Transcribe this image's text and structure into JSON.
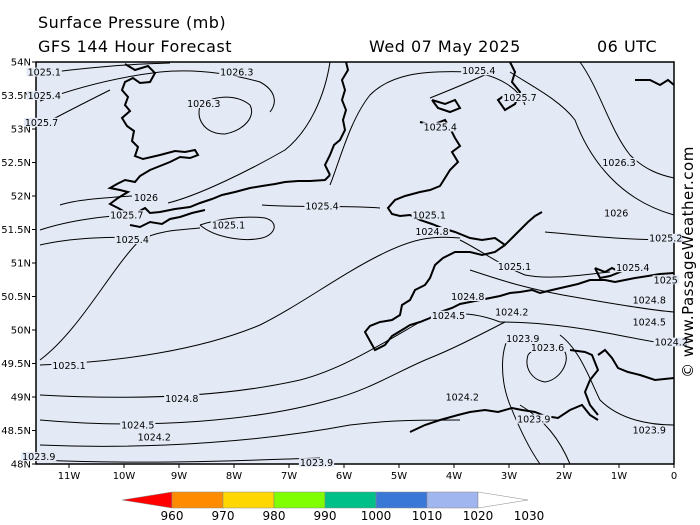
{
  "header": {
    "title_line1": "Surface Pressure (mb)",
    "title_line2": "GFS 144 Hour Forecast",
    "valid_date": "Wed 07 May 2025",
    "valid_time": "06 UTC"
  },
  "watermark": "© www.PassageWeather.com",
  "map": {
    "background_color": "#e3e9f5",
    "latitude_ticks": [
      "54N",
      "53.5N",
      "53N",
      "52.5N",
      "52N",
      "51.5N",
      "51N",
      "50.5N",
      "50N",
      "49.5N",
      "49N",
      "48.5N",
      "48N"
    ],
    "longitude_ticks": [
      "11W",
      "10W",
      "9W",
      "8W",
      "7W",
      "6W",
      "5W",
      "4W",
      "3W",
      "2W",
      "1W",
      "0"
    ],
    "isobar_labels": [
      {
        "text": "1025.1",
        "lon": -11.45,
        "lat": 53.85
      },
      {
        "text": "1025.4",
        "lon": -11.45,
        "lat": 53.5
      },
      {
        "text": "1025.7",
        "lon": -11.5,
        "lat": 53.1
      },
      {
        "text": "1026.3",
        "lon": -7.95,
        "lat": 53.85
      },
      {
        "text": "1026.3",
        "lon": -8.55,
        "lat": 53.38
      },
      {
        "text": "1025.4",
        "lon": -3.55,
        "lat": 53.87
      },
      {
        "text": "1025.7",
        "lon": -2.8,
        "lat": 53.47
      },
      {
        "text": "1025.4",
        "lon": -4.25,
        "lat": 53.03
      },
      {
        "text": "1026.3",
        "lon": -1.0,
        "lat": 52.5
      },
      {
        "text": "1026",
        "lon": -9.6,
        "lat": 51.98
      },
      {
        "text": "1025.7",
        "lon": -9.95,
        "lat": 51.72
      },
      {
        "text": "1025.4",
        "lon": -9.85,
        "lat": 51.35
      },
      {
        "text": "1025.4",
        "lon": -6.4,
        "lat": 51.85
      },
      {
        "text": "1025.1",
        "lon": -8.1,
        "lat": 51.57
      },
      {
        "text": "1025.1",
        "lon": -4.45,
        "lat": 51.72
      },
      {
        "text": "1024.8",
        "lon": -4.4,
        "lat": 51.47
      },
      {
        "text": "1026",
        "lon": -1.05,
        "lat": 51.75
      },
      {
        "text": "1025.2",
        "lon": -0.15,
        "lat": 51.37
      },
      {
        "text": "1025.1",
        "lon": -2.9,
        "lat": 50.95
      },
      {
        "text": "1025.4",
        "lon": -0.75,
        "lat": 50.93
      },
      {
        "text": "1025",
        "lon": -0.15,
        "lat": 50.75
      },
      {
        "text": "1024.8",
        "lon": -0.45,
        "lat": 50.45
      },
      {
        "text": "1024.8",
        "lon": -3.75,
        "lat": 50.5
      },
      {
        "text": "1024.2",
        "lon": -2.95,
        "lat": 50.27
      },
      {
        "text": "1024.5",
        "lon": -4.1,
        "lat": 50.22
      },
      {
        "text": "1024.5",
        "lon": -0.45,
        "lat": 50.12
      },
      {
        "text": "1023.9",
        "lon": -2.75,
        "lat": 49.87
      },
      {
        "text": "1023.6",
        "lon": -2.3,
        "lat": 49.74
      },
      {
        "text": "1024.2",
        "lon": -0.05,
        "lat": 49.82
      },
      {
        "text": "1025.1",
        "lon": -11.0,
        "lat": 49.47
      },
      {
        "text": "1024.8",
        "lon": -8.95,
        "lat": 48.98
      },
      {
        "text": "1024.2",
        "lon": -3.85,
        "lat": 49.0
      },
      {
        "text": "1024.5",
        "lon": -9.75,
        "lat": 48.58
      },
      {
        "text": "1023.9",
        "lon": -2.55,
        "lat": 48.67
      },
      {
        "text": "1024.2",
        "lon": -9.45,
        "lat": 48.4
      },
      {
        "text": "1023.9",
        "lon": -0.45,
        "lat": 48.51
      },
      {
        "text": "1023.9",
        "lon": -11.55,
        "lat": 48.11
      },
      {
        "text": "1023.9",
        "lon": -6.5,
        "lat": 48.02
      }
    ]
  },
  "colorbar": {
    "labels": [
      "960",
      "970",
      "980",
      "990",
      "1000",
      "1010",
      "1020",
      "1030"
    ],
    "colors": [
      "#ff0000",
      "#ff8c00",
      "#ffd700",
      "#7fff00",
      "#00c08a",
      "#3a78d8",
      "#a0b6ee",
      "#ffffff"
    ]
  }
}
